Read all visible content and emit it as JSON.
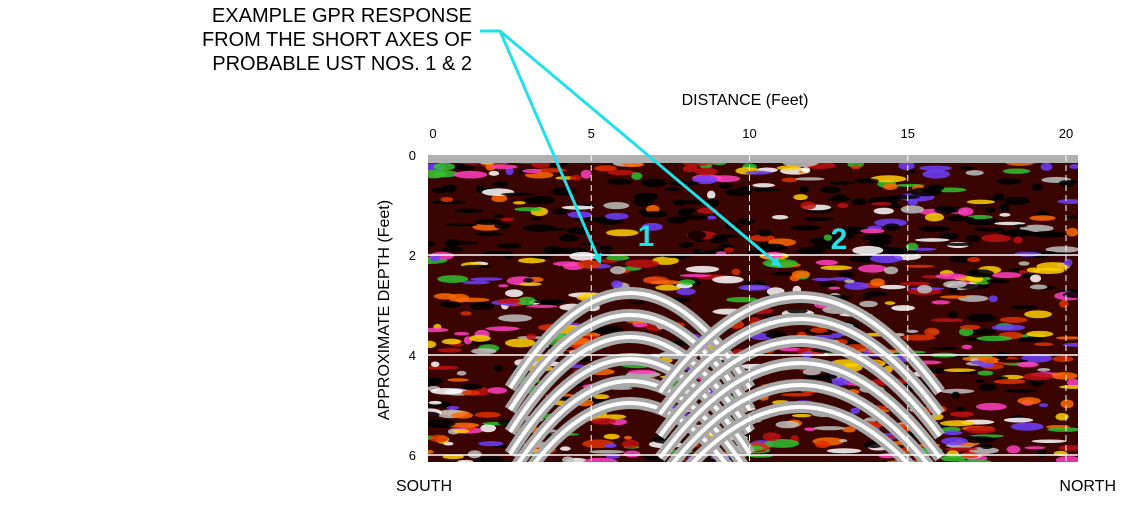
{
  "annotation": {
    "lines": [
      "EXAMPLE GPR RESPONSE",
      "FROM THE SHORT AXES OF",
      "PROBABLE UST NOS. 1 & 2"
    ]
  },
  "x_axis": {
    "title": "DISTANCE (Feet)",
    "ticks": [
      0,
      5,
      10,
      15,
      20
    ]
  },
  "y_axis": {
    "title": "APPROXIMATE DEPTH (Feet)",
    "ticks": [
      0,
      2,
      4,
      6
    ]
  },
  "markers": [
    "1",
    "2"
  ],
  "directions": {
    "left": "SOUTH",
    "right": "NORTH"
  }
}
